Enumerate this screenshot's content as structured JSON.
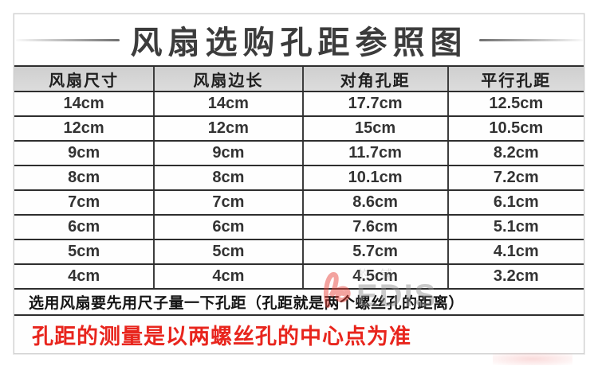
{
  "title": "风扇选购孔距参照图",
  "table": {
    "headers": [
      "风扇尺寸",
      "风扇边长",
      "对角孔距",
      "平行孔距"
    ],
    "rows": [
      [
        "14cm",
        "14cm",
        "17.7cm",
        "12.5cm"
      ],
      [
        "12cm",
        "12cm",
        "15cm",
        "10.5cm"
      ],
      [
        "9cm",
        "9cm",
        "11.7cm",
        "8.2cm"
      ],
      [
        "8cm",
        "8cm",
        "10.1cm",
        "7.2cm"
      ],
      [
        "7cm",
        "7cm",
        "8.6cm",
        "6.1cm"
      ],
      [
        "6cm",
        "6cm",
        "7.6cm",
        "5.1cm"
      ],
      [
        "5cm",
        "5cm",
        "5.7cm",
        "4.1cm"
      ],
      [
        "4cm",
        "4cm",
        "4.5cm",
        "3.2cm"
      ]
    ]
  },
  "notes": {
    "tip": "选用风扇要先用尺子量一下孔距（孔距就是两个螺丝孔的距离）",
    "highlight": "孔距的测量是以两螺丝孔的中心点为准"
  },
  "watermark": {
    "logo_text": "EDIS",
    "faint_text": "的铺"
  },
  "colors": {
    "highlight_red": "#e8251d",
    "header_bg": "#d6d6d6",
    "title_color": "#3c3c3c",
    "border_dark": "#2e2e2e",
    "logo_red": "#e8413a"
  }
}
